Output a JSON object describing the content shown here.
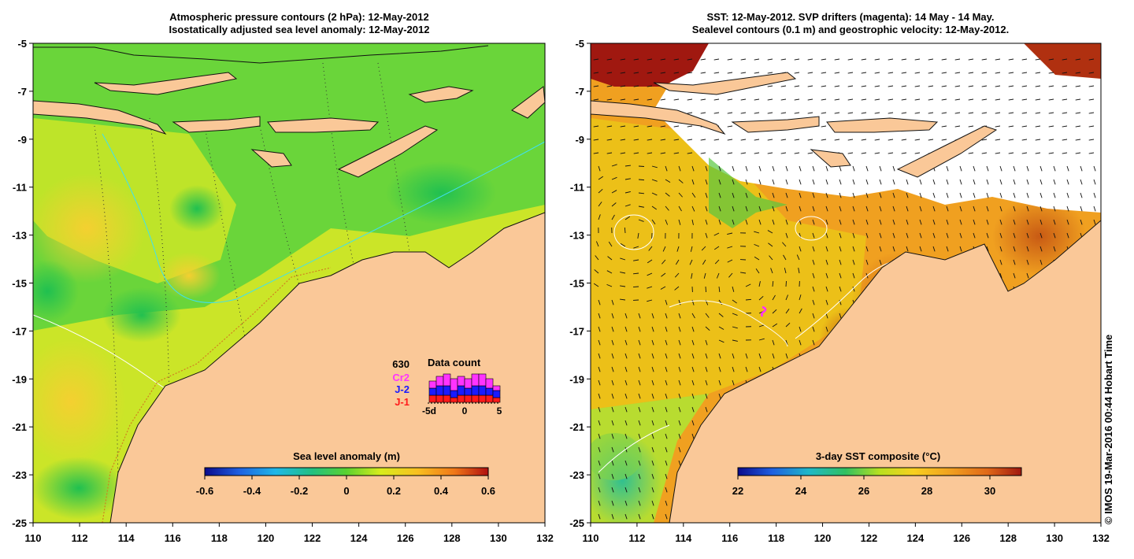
{
  "left_panel": {
    "title_line1": "Atmospheric pressure contours (2 hPa): 12-May-2012",
    "title_line2": "Isostatically adjusted sea level anomaly: 12-May-2012",
    "x_ticks": [
      "110",
      "112",
      "114",
      "116",
      "118",
      "120",
      "122",
      "124",
      "126",
      "128",
      "130",
      "132"
    ],
    "y_ticks": [
      "-5",
      "-7",
      "-9",
      "-11",
      "-13",
      "-15",
      "-17",
      "-19",
      "-21",
      "-23",
      "-25"
    ],
    "colorbar": {
      "label": "Sea level anomaly (m)",
      "ticks": [
        "-0.6",
        "-0.4",
        "-0.2",
        "0",
        "0.2",
        "0.4",
        "0.6"
      ],
      "range": [
        -0.6,
        0.6
      ]
    },
    "data_count": {
      "title": "Data count",
      "total": "630",
      "legend": [
        {
          "label": "Cr2",
          "color": "#ff33ff"
        },
        {
          "label": "J-2",
          "color": "#1a1aff"
        },
        {
          "label": "J-1",
          "color": "#ff1a1a"
        }
      ],
      "axis_ticks": [
        "-5d",
        "0",
        "5"
      ],
      "bins_j1": [
        3,
        3,
        3,
        2,
        3,
        3,
        3,
        3,
        3,
        2
      ],
      "bins_j2": [
        3,
        4,
        4,
        3,
        4,
        3,
        4,
        4,
        3,
        3
      ],
      "bins_cr2": [
        3,
        4,
        5,
        5,
        4,
        4,
        5,
        5,
        4,
        2
      ]
    }
  },
  "right_panel": {
    "title_line1": "SST: 12-May-2012. SVP drifters (magenta): 14 May - 14 May.",
    "title_line2": "Sealevel contours (0.1 m) and geostrophic velocity: 12-May-2012.",
    "x_ticks": [
      "110",
      "112",
      "114",
      "116",
      "118",
      "120",
      "122",
      "124",
      "126",
      "128",
      "130",
      "132"
    ],
    "y_ticks": [
      "-5",
      "-7",
      "-9",
      "-11",
      "-13",
      "-15",
      "-17",
      "-19",
      "-21",
      "-23",
      "-25"
    ],
    "colorbar": {
      "label": "3-day SST composite (°C)",
      "ticks": [
        "22",
        "24",
        "26",
        "28",
        "30"
      ],
      "range": [
        22,
        31
      ]
    }
  },
  "credit": "© IMOS 19-Mar-2016 00:44 Hobart Time",
  "colors": {
    "land": "#fac898",
    "sla_green": "#6ad53a",
    "sla_yellow": "#dcee20",
    "sst_orange": "#f0a020",
    "sst_yellow": "#e8c018",
    "cloud": "#ffffff"
  }
}
